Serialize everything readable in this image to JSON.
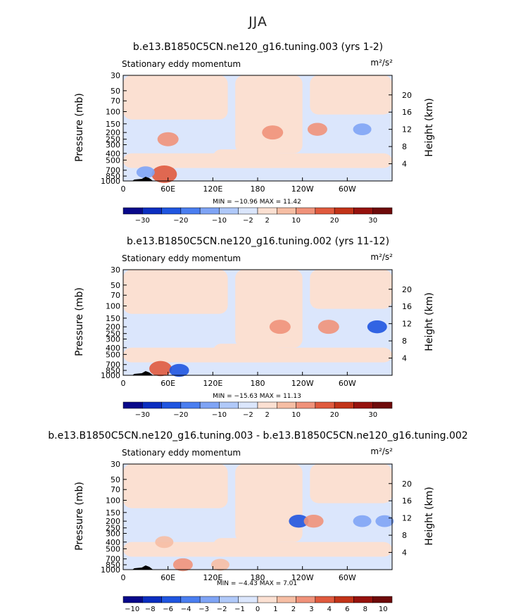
{
  "page": {
    "title": "JJA"
  },
  "colors": {
    "scale": [
      "#08088a",
      "#0b2ec0",
      "#1f55e0",
      "#4a7ef0",
      "#7fa4f5",
      "#b0c9f9",
      "#dbe6fc",
      "#fbe0d2",
      "#f6bea4",
      "#f0927a",
      "#e05a3e",
      "#c23318",
      "#96120d",
      "#6e0a0a"
    ]
  },
  "chart_data": [
    {
      "type": "heatmap",
      "title": "b.e13.B1850C5CN.ne120_g16.tuning.003 (yrs 1-2)",
      "subtitle_left": "Stationary eddy momentum",
      "units": "m²/s²",
      "ylabel": "Pressure  (mb)",
      "y2label": "Height  (km)",
      "pressure_ticks": [
        "30",
        "50",
        "70",
        "100",
        "150",
        "200",
        "250",
        "300",
        "400",
        "500",
        "700",
        "850",
        "1000"
      ],
      "height_ticks": [
        "20",
        "16",
        "12",
        "8",
        "4"
      ],
      "x_ticks": [
        "0",
        "60E",
        "120E",
        "180",
        "120W",
        "60W"
      ],
      "stats": "MIN = −10.96   MAX =  11.42",
      "colorbar_labels": [
        "−30",
        "−20",
        "−10",
        "−2",
        "2",
        "10",
        "20",
        "30"
      ],
      "colorbar_levels": [
        -30,
        -25,
        -20,
        -15,
        -10,
        -5,
        -2,
        2,
        5,
        10,
        15,
        20,
        25,
        30
      ],
      "min": -10.96,
      "max": 11.42,
      "features": [
        {
          "lon": 60,
          "p": 250,
          "value": 5
        },
        {
          "lon": 200,
          "p": 200,
          "value": 5
        },
        {
          "lon": 260,
          "p": 180,
          "value": 4
        },
        {
          "lon": 320,
          "p": 180,
          "value": -3
        },
        {
          "lon": 55,
          "p": 800,
          "value": 8
        },
        {
          "lon": 30,
          "p": 750,
          "value": -3
        }
      ]
    },
    {
      "type": "heatmap",
      "title": "b.e13.B1850C5CN.ne120_g16.tuning.002 (yrs 11-12)",
      "subtitle_left": "Stationary eddy momentum",
      "units": "m²/s²",
      "ylabel": "Pressure  (mb)",
      "y2label": "Height  (km)",
      "pressure_ticks": [
        "30",
        "50",
        "70",
        "100",
        "150",
        "200",
        "250",
        "300",
        "400",
        "500",
        "700",
        "850",
        "1000"
      ],
      "height_ticks": [
        "20",
        "16",
        "12",
        "8",
        "4"
      ],
      "x_ticks": [
        "0",
        "60E",
        "120E",
        "180",
        "120W",
        "60W"
      ],
      "stats": "MIN = −15.63   MAX =  11.13",
      "colorbar_labels": [
        "−30",
        "−20",
        "−10",
        "−2",
        "2",
        "10",
        "20",
        "30"
      ],
      "colorbar_levels": [
        -30,
        -25,
        -20,
        -15,
        -10,
        -5,
        -2,
        2,
        5,
        10,
        15,
        20,
        25,
        30
      ],
      "min": -15.63,
      "max": 11.13,
      "features": [
        {
          "lon": 210,
          "p": 200,
          "value": 5
        },
        {
          "lon": 275,
          "p": 200,
          "value": 5
        },
        {
          "lon": 340,
          "p": 200,
          "value": -4
        },
        {
          "lon": 50,
          "p": 800,
          "value": 6
        },
        {
          "lon": 75,
          "p": 850,
          "value": -4
        }
      ]
    },
    {
      "type": "heatmap",
      "title": "b.e13.B1850C5CN.ne120_g16.tuning.003 - b.e13.B1850C5CN.ne120_g16.tuning.002",
      "subtitle_left": "Stationary eddy momentum",
      "units": "m²/s²",
      "ylabel": "Pressure  (mb)",
      "y2label": "Height  (km)",
      "pressure_ticks": [
        "30",
        "50",
        "70",
        "100",
        "150",
        "200",
        "250",
        "300",
        "400",
        "500",
        "700",
        "850",
        "1000"
      ],
      "height_ticks": [
        "20",
        "16",
        "12",
        "8",
        "4"
      ],
      "x_ticks": [
        "0",
        "60E",
        "120E",
        "180",
        "120W",
        "60W"
      ],
      "stats": "MIN =  −4.43   MAX =   7.01",
      "colorbar_labels": [
        "−10",
        "−8",
        "−6",
        "−4",
        "−3",
        "−2",
        "−1",
        "0",
        "1",
        "2",
        "3",
        "4",
        "6",
        "8",
        "10"
      ],
      "colorbar_levels": [
        -10,
        -8,
        -6,
        -4,
        -3,
        -2,
        -1,
        0,
        1,
        2,
        3,
        4,
        6,
        8,
        10
      ],
      "min": -4.43,
      "max": 7.01,
      "features": [
        {
          "lon": 235,
          "p": 200,
          "value": -4
        },
        {
          "lon": 255,
          "p": 200,
          "value": 4
        },
        {
          "lon": 320,
          "p": 200,
          "value": -3
        },
        {
          "lon": 350,
          "p": 200,
          "value": -3
        },
        {
          "lon": 55,
          "p": 400,
          "value": 3
        },
        {
          "lon": 80,
          "p": 850,
          "value": 4
        },
        {
          "lon": 130,
          "p": 850,
          "value": 3
        }
      ]
    }
  ]
}
